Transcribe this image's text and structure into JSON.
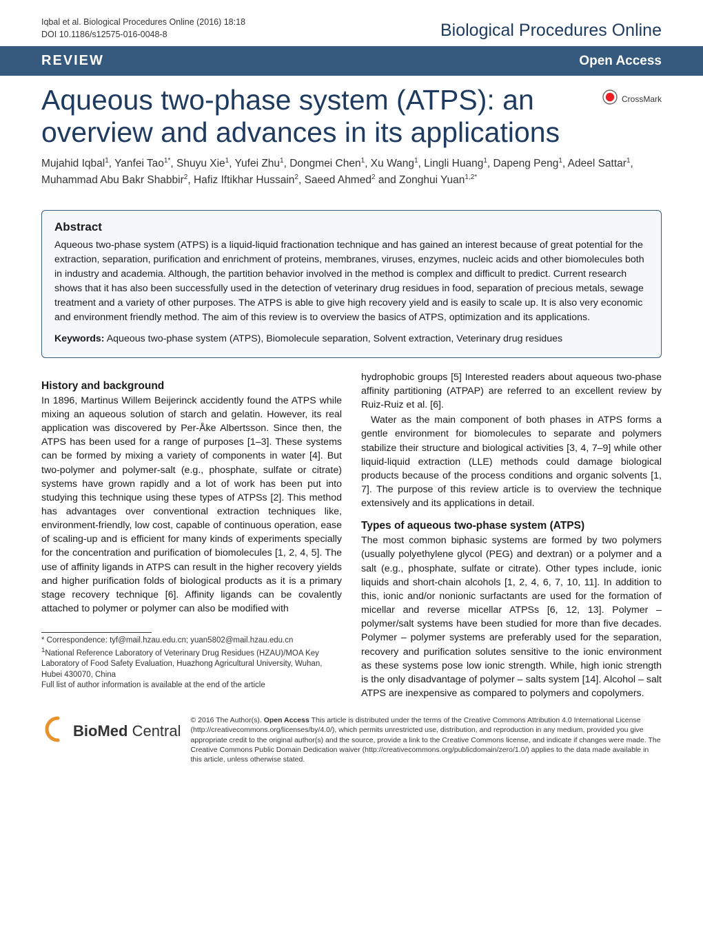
{
  "header": {
    "running_head_line1": "Iqbal et al. Biological Procedures Online  (2016) 18:18",
    "running_head_line2": "DOI 10.1186/s12575-016-0048-8",
    "journal_name": "Biological Procedures Online"
  },
  "review_bar": {
    "label": "REVIEW",
    "open_access": "Open Access"
  },
  "title": "Aqueous two-phase system (ATPS): an overview and advances in its applications",
  "crossmark": {
    "label": "CrossMark",
    "circle_fill": "#ec1c24",
    "circle_stroke": "#666666"
  },
  "authors_html_parts": [
    {
      "t": "Mujahid Iqbal",
      "s": "1"
    },
    {
      "t": ", Yanfei Tao",
      "s": "1*"
    },
    {
      "t": ", Shuyu Xie",
      "s": "1"
    },
    {
      "t": ", Yufei Zhu",
      "s": "1"
    },
    {
      "t": ", Dongmei Chen",
      "s": "1"
    },
    {
      "t": ", Xu Wang",
      "s": "1"
    },
    {
      "t": ", Lingli Huang",
      "s": "1"
    },
    {
      "t": ", Dapeng Peng",
      "s": "1"
    },
    {
      "t": ", Adeel Sattar",
      "s": "1"
    },
    {
      "t": ", Muhammad Abu Bakr Shabbir",
      "s": "2"
    },
    {
      "t": ", Hafiz Iftikhar Hussain",
      "s": "2"
    },
    {
      "t": ", Saeed Ahmed",
      "s": "2"
    },
    {
      "t": " and Zonghui Yuan",
      "s": "1,2*"
    }
  ],
  "abstract": {
    "heading": "Abstract",
    "body": "Aqueous two-phase system (ATPS) is a liquid-liquid fractionation technique and has gained an interest because of great potential for the extraction, separation, purification and enrichment of proteins, membranes, viruses, enzymes, nucleic acids and other biomolecules both in industry and academia. Although, the partition behavior involved in the method is complex and difficult to predict. Current research shows that it has also been successfully used in the detection of veterinary drug residues in food, separation of precious metals, sewage treatment and a variety of other purposes. The ATPS is able to give high recovery yield and is easily to scale up. It is also very economic and environment friendly method. The aim of this review is to overview the basics of ATPS, optimization and its applications.",
    "keywords_label": "Keywords:",
    "keywords": "Aqueous two-phase system (ATPS), Biomolecule separation, Solvent extraction, Veterinary drug residues"
  },
  "sections": {
    "left": {
      "heading1": "History and background",
      "para1": "In 1896, Martinus Willem Beijerinck accidently found the ATPS while mixing an aqueous solution of starch and gelatin. However, its real application was discovered by Per-Åke Albertsson. Since then, the ATPS has been used for a range of purposes [1–3]. These systems can be formed by mixing a variety of components in water [4]. But two-polymer and polymer-salt (e.g., phosphate, sulfate or citrate) systems have grown rapidly and a lot of work has been put into studying this technique using these types of ATPSs [2]. This method has advantages over conventional extraction techniques like, environment-friendly, low cost, capable of continuous operation, ease of scaling-up and is efficient for many kinds of experiments specially for the concentration and purification of biomolecules [1, 2, 4, 5]. The use of affinity ligands in ATPS can result in the higher recovery yields and higher purification folds of biological products as it is a primary stage recovery technique [6]. Affinity ligands can be covalently attached to polymer or polymer can also be modified with"
    },
    "right": {
      "para2": "hydrophobic groups [5] Interested readers about aqueous two-phase affinity partitioning (ATPAP) are referred to an excellent review by Ruiz-Ruiz et al. [6].",
      "para3": "Water as the main component of both phases in ATPS forms a gentle environment for biomolecules to separate and polymers stabilize their structure and biological activities [3, 4, 7–9] while other liquid-liquid extraction (LLE) methods could damage biological products because of the process conditions and organic solvents [1, 7]. The purpose of this review article is to overview the technique extensively and its applications in detail.",
      "heading2": "Types of aqueous two-phase system (ATPS)",
      "para4": "The most common biphasic systems are formed by two polymers (usually polyethylene glycol (PEG) and dextran) or a polymer and a salt (e.g., phosphate, sulfate or citrate). Other types include, ionic liquids and short-chain alcohols [1, 2, 4, 6, 7, 10, 11]. In addition to this, ionic and/or nonionic surfactants are used for the formation of micellar and reverse micellar ATPSs [6, 12, 13]. Polymer – polymer/salt systems have been studied for more than five decades. Polymer – polymer systems are preferably used for the separation, recovery and purification solutes sensitive to the ionic environment as these systems pose low ionic strength. While, high ionic strength is the only disadvantage of polymer – salts system [14]. Alcohol – salt ATPS are inexpensive as compared to polymers and copolymers."
    }
  },
  "footnote": {
    "correspondence": "* Correspondence: tyf@mail.hzau.edu.cn; yuan5802@mail.hzau.edu.cn",
    "affil1_sup": "1",
    "affil1": "National Reference Laboratory of Veterinary Drug Residues (HZAU)/MOA Key Laboratory of Food Safety Evaluation, Huazhong Agricultural University, Wuhan, Hubei 430070, China",
    "affil_note": "Full list of author information is available at the end of the article"
  },
  "footer": {
    "logo_bio": "BioMed",
    "logo_central": " Central",
    "logo_paren_color": "#e8922b",
    "license": "© 2016 The Author(s). Open Access This article is distributed under the terms of the Creative Commons Attribution 4.0 International License (http://creativecommons.org/licenses/by/4.0/), which permits unrestricted use, distribution, and reproduction in any medium, provided you give appropriate credit to the original author(s) and the source, provide a link to the Creative Commons license, and indicate if changes were made. The Creative Commons Public Domain Dedication waiver (http://creativecommons.org/publicdomain/zero/1.0/) applies to the data made available in this article, unless otherwise stated.",
    "license_bold": "Open Access"
  },
  "colors": {
    "bar_bg": "#355a7d",
    "title_color": "#1e3a5f",
    "abstract_border": "#355a7d",
    "abstract_bg": "#f5f8fa"
  }
}
